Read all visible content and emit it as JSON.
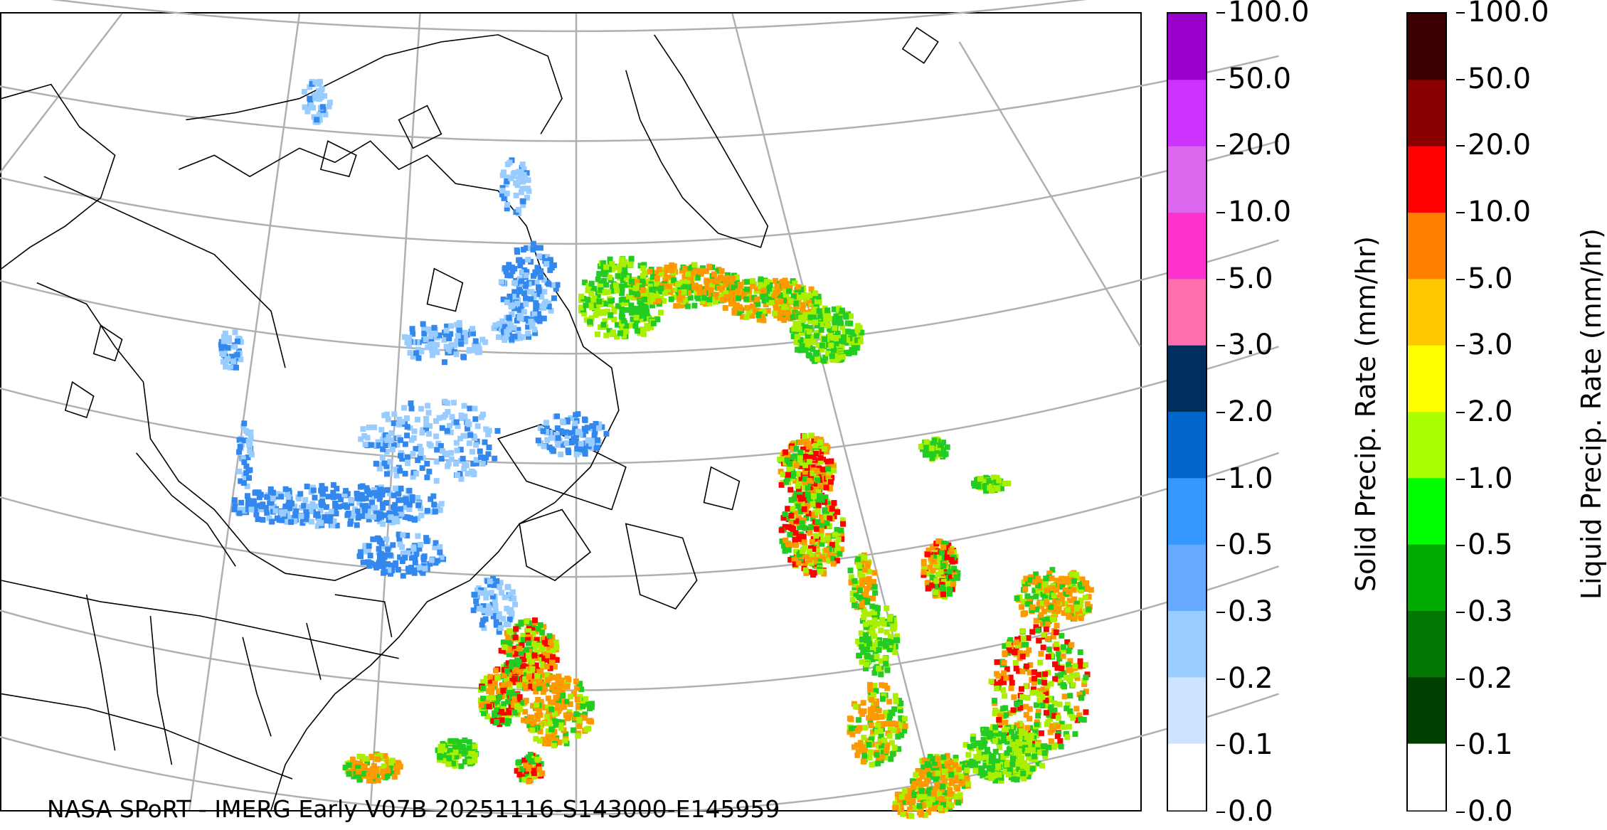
{
  "map": {
    "credit_text": "NASA SPoRT - IMERG Early V07B 20251116-S143000-E145959",
    "graticule_color": "#b0b0b0",
    "coastline_color": "#000000",
    "precip_cells": [
      {
        "type": "liquid",
        "level": "green",
        "color": "#22cc22"
      },
      {
        "type": "liquid",
        "level": "yellow-green",
        "color": "#aaee00"
      },
      {
        "type": "liquid",
        "level": "orange",
        "color": "#ff9900"
      },
      {
        "type": "liquid",
        "level": "red",
        "color": "#ff0000"
      },
      {
        "type": "solid",
        "level": "light-blue",
        "color": "#99ccff"
      },
      {
        "type": "solid",
        "level": "blue",
        "color": "#3388ee"
      }
    ]
  },
  "solid_colorbar": {
    "label": "Solid Precip. Rate (mm/hr)",
    "ticks": [
      "100.0",
      "50.0",
      "20.0",
      "10.0",
      "5.0",
      "3.0",
      "2.0",
      "1.0",
      "0.5",
      "0.3",
      "0.2",
      "0.1",
      "0.0"
    ],
    "colors": [
      "#9900cc",
      "#cc33ff",
      "#dd66ee",
      "#ff33cc",
      "#ff6fae",
      "#002f5f",
      "#0066cc",
      "#3399ff",
      "#66aaff",
      "#99ccff",
      "#cce4ff",
      "#ffffff"
    ]
  },
  "liquid_colorbar": {
    "label": "Liquid Precip. Rate (mm/hr)",
    "ticks": [
      "100.0",
      "50.0",
      "20.0",
      "10.0",
      "5.0",
      "3.0",
      "2.0",
      "1.0",
      "0.5",
      "0.3",
      "0.2",
      "0.1",
      "0.0"
    ],
    "colors": [
      "#3d0000",
      "#880000",
      "#ff0000",
      "#ff8000",
      "#ffc800",
      "#ffff00",
      "#aaff00",
      "#00ff00",
      "#00aa00",
      "#007700",
      "#003f00",
      "#ffffff"
    ]
  }
}
